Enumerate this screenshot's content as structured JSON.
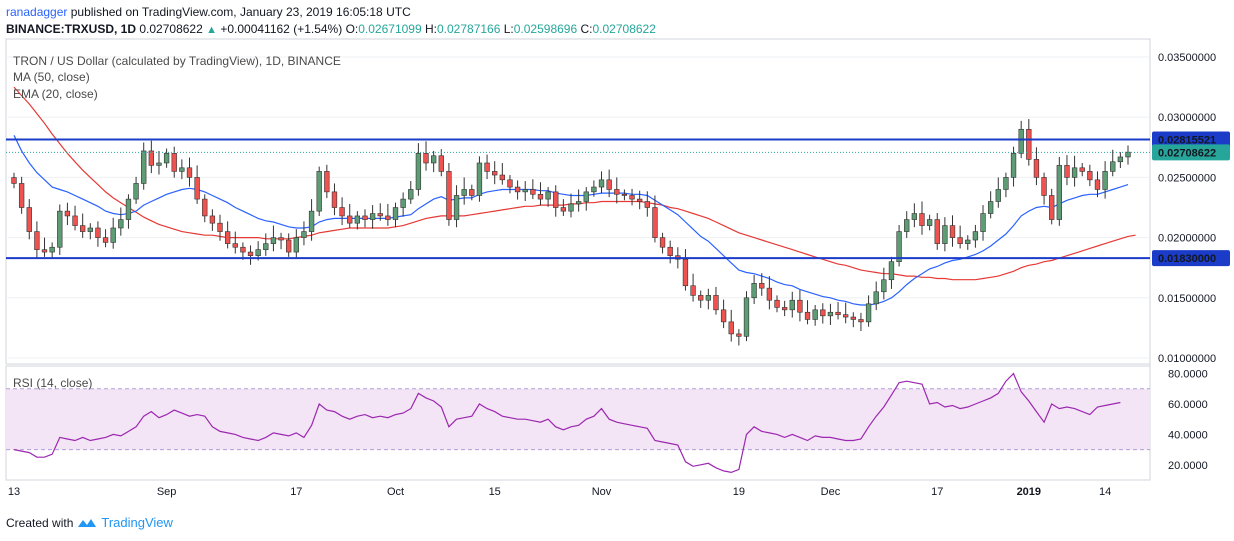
{
  "header": {
    "author": "ranadagger",
    "published": "published on TradingView.com, January 23, 2019 16:05:18 UTC",
    "symbol": "BINANCE:TRXUSD, 1D",
    "last": "0.02708622",
    "change": "+0.00041162 (+1.54%)",
    "o_label": "O:",
    "o": "0.02671099",
    "h_label": "H:",
    "h": "0.02787166",
    "l_label": "L:",
    "l": "0.02598696",
    "c_label": "C:",
    "c": "0.02708622"
  },
  "legend": {
    "title": "TRON / US Dollar (calculated by TradingView), 1D, BINANCE",
    "ma": "MA (50, close)",
    "ema": "EMA (20, close)",
    "rsi": "RSI (14, close)"
  },
  "footer": {
    "created_with": "Created with",
    "brand": "TradingView",
    "logo": "tradingview-logo-icon"
  },
  "colors": {
    "up": "#26a69a",
    "up_body": "#5d9c74",
    "down": "#ef5350",
    "ma": "#e53935",
    "ema": "#2962ff",
    "level": "#1a3cc8",
    "rsi": "#9c27b0",
    "rsi_band": "#f3e5f5",
    "price_tag": "#26a69a"
  },
  "chart_data": [
    {
      "type": "candlestick",
      "title": "TRON / US Dollar (calculated by TradingView), 1D, BINANCE",
      "y_range": [
        0.0095,
        0.0365
      ],
      "y_ticks": [
        "0.03500000",
        "0.03000000",
        "0.02500000",
        "0.02000000",
        "0.01500000",
        "0.01000000"
      ],
      "x_labels": [
        "13",
        "Sep",
        "17",
        "Oct",
        "15",
        "Nov",
        "19",
        "Dec",
        "17",
        "2019",
        "14"
      ],
      "levels": [
        {
          "value": 0.02815521,
          "label": "0.02815521"
        },
        {
          "value": 0.0183,
          "label": "0.01830000"
        }
      ],
      "last_price": {
        "value": 0.02708622,
        "label": "0.02708622"
      },
      "closes": [
        0.0245,
        0.0225,
        0.0205,
        0.019,
        0.0188,
        0.0192,
        0.0222,
        0.0218,
        0.021,
        0.0205,
        0.0208,
        0.02,
        0.0196,
        0.0208,
        0.0215,
        0.0232,
        0.0245,
        0.0272,
        0.026,
        0.0262,
        0.027,
        0.0255,
        0.0258,
        0.025,
        0.0232,
        0.0218,
        0.0212,
        0.0205,
        0.0195,
        0.0192,
        0.0188,
        0.0185,
        0.019,
        0.0195,
        0.02,
        0.0198,
        0.0188,
        0.02,
        0.0205,
        0.0222,
        0.0255,
        0.0238,
        0.0225,
        0.0218,
        0.0212,
        0.0218,
        0.0215,
        0.022,
        0.0218,
        0.0215,
        0.0225,
        0.0232,
        0.024,
        0.027,
        0.0262,
        0.0268,
        0.0255,
        0.0215,
        0.0235,
        0.024,
        0.0235,
        0.0262,
        0.0255,
        0.0252,
        0.0248,
        0.0242,
        0.0238,
        0.024,
        0.0236,
        0.0232,
        0.0238,
        0.0225,
        0.0222,
        0.0228,
        0.023,
        0.0238,
        0.0242,
        0.0248,
        0.024,
        0.0236,
        0.0235,
        0.0232,
        0.023,
        0.0225,
        0.02,
        0.0192,
        0.0185,
        0.0182,
        0.016,
        0.0152,
        0.0148,
        0.0152,
        0.014,
        0.013,
        0.012,
        0.0118,
        0.015,
        0.0162,
        0.0158,
        0.0148,
        0.0142,
        0.014,
        0.0148,
        0.0138,
        0.0132,
        0.014,
        0.0135,
        0.0138,
        0.0136,
        0.0134,
        0.0132,
        0.013,
        0.0145,
        0.0155,
        0.0165,
        0.018,
        0.0205,
        0.0215,
        0.022,
        0.021,
        0.0215,
        0.0195,
        0.021,
        0.02,
        0.0195,
        0.0198,
        0.0205,
        0.022,
        0.023,
        0.024,
        0.025,
        0.027,
        0.029,
        0.0265,
        0.025,
        0.0235,
        0.0215,
        0.026,
        0.025,
        0.0258,
        0.0255,
        0.0248,
        0.024,
        0.0255,
        0.0263,
        0.0267,
        0.0271
      ],
      "ma50": [
        0.0325,
        0.0318,
        0.0311,
        0.0303,
        0.0295,
        0.0286,
        0.0278,
        0.027,
        0.0263,
        0.0256,
        0.025,
        0.0244,
        0.0238,
        0.0233,
        0.0229,
        0.0225,
        0.0221,
        0.0217,
        0.0214,
        0.0211,
        0.0209,
        0.0207,
        0.0205,
        0.0204,
        0.0203,
        0.0202,
        0.0202,
        0.0201,
        0.02,
        0.02,
        0.02,
        0.02,
        0.02,
        0.0199,
        0.0199,
        0.0199,
        0.0199,
        0.02,
        0.0201,
        0.0202,
        0.0204,
        0.0205,
        0.0206,
        0.0207,
        0.0208,
        0.0208,
        0.0208,
        0.0208,
        0.0208,
        0.0208,
        0.0209,
        0.021,
        0.0212,
        0.0214,
        0.0216,
        0.0217,
        0.0218,
        0.0218,
        0.0218,
        0.0218,
        0.0219,
        0.022,
        0.0221,
        0.0222,
        0.0223,
        0.0224,
        0.0225,
        0.0226,
        0.0226,
        0.0227,
        0.0227,
        0.0227,
        0.0227,
        0.0228,
        0.0228,
        0.0229,
        0.0229,
        0.023,
        0.023,
        0.023,
        0.023,
        0.023,
        0.023,
        0.0229,
        0.0228,
        0.0227,
        0.0225,
        0.0224,
        0.0222,
        0.022,
        0.0218,
        0.0216,
        0.0213,
        0.021,
        0.0207,
        0.0204,
        0.0202,
        0.02,
        0.0198,
        0.0196,
        0.0194,
        0.0192,
        0.019,
        0.0188,
        0.0186,
        0.0184,
        0.0182,
        0.018,
        0.0178,
        0.0177,
        0.0175,
        0.0173,
        0.0172,
        0.0171,
        0.017,
        0.017,
        0.0169,
        0.0168,
        0.0168,
        0.0167,
        0.0167,
        0.0166,
        0.0166,
        0.0165,
        0.0165,
        0.0165,
        0.0165,
        0.0166,
        0.0167,
        0.0168,
        0.017,
        0.0172,
        0.0175,
        0.0177,
        0.0178,
        0.018,
        0.0181,
        0.0183,
        0.0185,
        0.0187,
        0.0189,
        0.0191,
        0.0193,
        0.0195,
        0.0197,
        0.0199,
        0.0201,
        0.0202
      ],
      "ema20": [
        0.0285,
        0.0272,
        0.0262,
        0.0254,
        0.0248,
        0.0242,
        0.024,
        0.0238,
        0.0235,
        0.0232,
        0.0229,
        0.0226,
        0.0222,
        0.022,
        0.0219,
        0.022,
        0.0222,
        0.0227,
        0.023,
        0.0233,
        0.0236,
        0.0238,
        0.024,
        0.0241,
        0.024,
        0.0238,
        0.0235,
        0.0232,
        0.0229,
        0.0225,
        0.0222,
        0.0219,
        0.0216,
        0.0214,
        0.0213,
        0.0211,
        0.0209,
        0.0208,
        0.0208,
        0.0209,
        0.0213,
        0.0215,
        0.0216,
        0.0216,
        0.0216,
        0.0216,
        0.0216,
        0.0216,
        0.0216,
        0.0216,
        0.0217,
        0.0218,
        0.0219,
        0.0224,
        0.0228,
        0.0232,
        0.0234,
        0.0231,
        0.0232,
        0.0233,
        0.0233,
        0.0236,
        0.0238,
        0.0239,
        0.024,
        0.024,
        0.024,
        0.024,
        0.024,
        0.0239,
        0.0239,
        0.0237,
        0.0236,
        0.0235,
        0.0235,
        0.0235,
        0.0236,
        0.0237,
        0.0237,
        0.0237,
        0.0237,
        0.0236,
        0.0236,
        0.0235,
        0.0231,
        0.0227,
        0.0223,
        0.0219,
        0.0213,
        0.0207,
        0.0201,
        0.0197,
        0.0191,
        0.0185,
        0.0179,
        0.0173,
        0.0171,
        0.017,
        0.0168,
        0.0166,
        0.0163,
        0.0161,
        0.016,
        0.0157,
        0.0155,
        0.0153,
        0.0151,
        0.015,
        0.0148,
        0.0147,
        0.0145,
        0.0144,
        0.0144,
        0.0145,
        0.0147,
        0.015,
        0.0155,
        0.0161,
        0.0166,
        0.017,
        0.0174,
        0.0176,
        0.0179,
        0.0181,
        0.0182,
        0.0184,
        0.0186,
        0.0189,
        0.0193,
        0.0198,
        0.0203,
        0.021,
        0.0218,
        0.0222,
        0.0225,
        0.0226,
        0.0225,
        0.0228,
        0.0231,
        0.0233,
        0.0235,
        0.0236,
        0.0236,
        0.0238,
        0.024,
        0.0242,
        0.0244
      ]
    },
    {
      "type": "line",
      "title": "RSI (14, close)",
      "y_range": [
        10,
        85
      ],
      "y_ticks": [
        "80.0000",
        "60.0000",
        "40.0000",
        "20.0000"
      ],
      "bands": [
        70,
        30
      ],
      "values": [
        30,
        29,
        28,
        25,
        25,
        27,
        38,
        37,
        36,
        38,
        36,
        37,
        38,
        40,
        39,
        42,
        45,
        52,
        55,
        51,
        53,
        56,
        54,
        52,
        53,
        52,
        45,
        42,
        41,
        40,
        38,
        37,
        36,
        38,
        41,
        40,
        39,
        41,
        38,
        46,
        60,
        56,
        55,
        52,
        50,
        52,
        53,
        51,
        52,
        51,
        53,
        54,
        57,
        67,
        64,
        62,
        58,
        45,
        50,
        51,
        52,
        60,
        57,
        55,
        52,
        51,
        50,
        50,
        49,
        48,
        50,
        45,
        43,
        45,
        46,
        50,
        52,
        57,
        50,
        48,
        47,
        46,
        45,
        44,
        36,
        35,
        34,
        33,
        22,
        19,
        20,
        21,
        18,
        16,
        15,
        17,
        40,
        45,
        42,
        41,
        40,
        38,
        40,
        38,
        36,
        39,
        38,
        38,
        37,
        36,
        36,
        37,
        45,
        52,
        58,
        66,
        74,
        75,
        74,
        73,
        60,
        61,
        58,
        59,
        57,
        58,
        60,
        62,
        64,
        67,
        75,
        80,
        68,
        62,
        55,
        48,
        60,
        57,
        58,
        57,
        55,
        53,
        58,
        59,
        60,
        61
      ]
    }
  ]
}
